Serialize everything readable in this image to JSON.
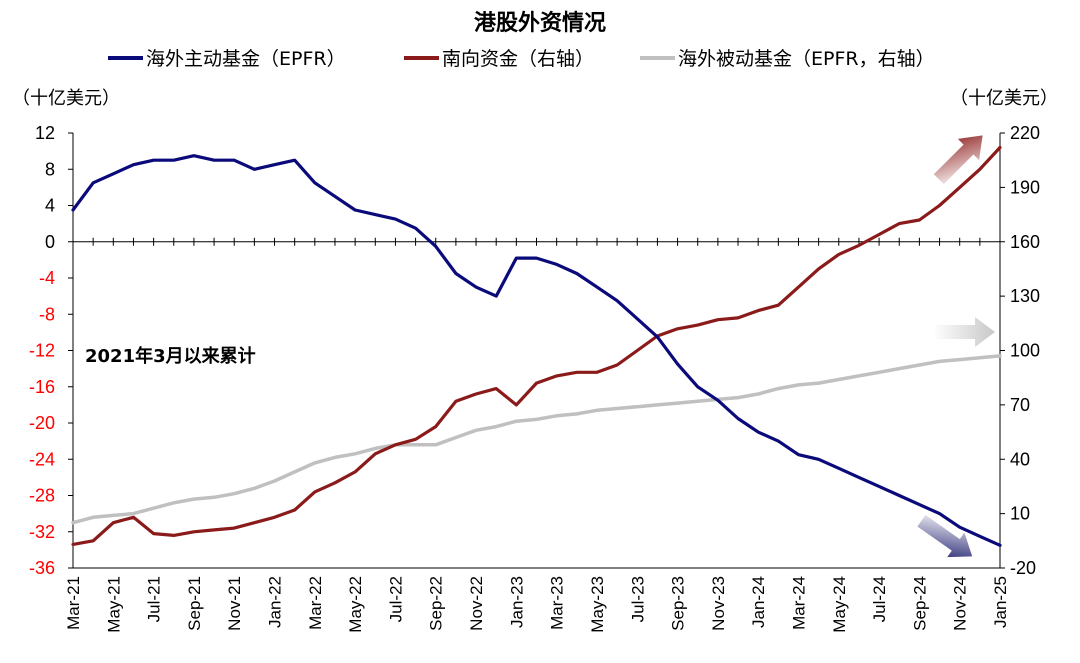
{
  "chart_data": {
    "type": "line",
    "title": "港股外资情况",
    "left_axis_unit": "（十亿美元）",
    "right_axis_unit": "（十亿美元）",
    "annotation": "2021年3月以来累计",
    "x": [
      "Mar-21",
      "Apr-21",
      "May-21",
      "Jun-21",
      "Jul-21",
      "Aug-21",
      "Sep-21",
      "Oct-21",
      "Nov-21",
      "Dec-21",
      "Jan-22",
      "Feb-22",
      "Mar-22",
      "Apr-22",
      "May-22",
      "Jun-22",
      "Jul-22",
      "Aug-22",
      "Sep-22",
      "Oct-22",
      "Nov-22",
      "Dec-22",
      "Jan-23",
      "Feb-23",
      "Mar-23",
      "Apr-23",
      "May-23",
      "Jun-23",
      "Jul-23",
      "Aug-23",
      "Sep-23",
      "Oct-23",
      "Nov-23",
      "Dec-23",
      "Jan-24",
      "Feb-24",
      "Mar-24",
      "Apr-24",
      "May-24",
      "Jun-24",
      "Jul-24",
      "Aug-24",
      "Sep-24",
      "Oct-24",
      "Nov-24",
      "Dec-24",
      "Jan-25"
    ],
    "x_tick_labels": [
      "Mar-21",
      "May-21",
      "Jul-21",
      "Sep-21",
      "Nov-21",
      "Jan-22",
      "Mar-22",
      "May-22",
      "Jul-22",
      "Sep-22",
      "Nov-22",
      "Jan-23",
      "Mar-23",
      "May-23",
      "Jul-23",
      "Sep-23",
      "Nov-23",
      "Jan-24",
      "Mar-24",
      "May-24",
      "Jul-24",
      "Sep-24",
      "Nov-24",
      "Jan-25"
    ],
    "left_axis": {
      "ylim": [
        -36,
        12
      ],
      "ticks": [
        12,
        8,
        4,
        0,
        -4,
        -8,
        -12,
        -16,
        -20,
        -24,
        -28,
        -32,
        -36
      ],
      "positive_color": "#000000",
      "negative_color": "#ff0000"
    },
    "right_axis": {
      "ylim": [
        -20,
        220
      ],
      "ticks": [
        220,
        190,
        160,
        130,
        100,
        70,
        40,
        10,
        -20
      ]
    },
    "series": [
      {
        "name": "海外主动基金（EPFR）",
        "axis": "left",
        "color": "#0a0a7a",
        "values": [
          3.5,
          6.5,
          7.5,
          8.5,
          9,
          9,
          9.5,
          9,
          9,
          8,
          8.5,
          9,
          6.5,
          5,
          3.5,
          3,
          2.5,
          1.5,
          -0.5,
          -3.5,
          -5,
          -6,
          -1.8,
          -1.8,
          -2.5,
          -3.5,
          -5,
          -6.5,
          -8.5,
          -10.5,
          -13.5,
          -16,
          -17.5,
          -19.5,
          -21,
          -22,
          -23.5,
          -24,
          -25,
          -26,
          -27,
          -28,
          -29,
          -30,
          -31.5,
          -32.5,
          -33.5
        ]
      },
      {
        "name": "南向资金（右轴）",
        "axis": "right",
        "color": "#8b1a1a",
        "values": [
          -7,
          -5,
          5,
          8,
          -1,
          -2,
          0,
          1,
          2,
          5,
          8,
          12,
          22,
          27,
          33,
          43,
          48,
          51,
          58,
          72,
          76,
          79,
          70,
          82,
          86,
          88,
          88,
          92,
          100,
          108,
          112,
          114,
          117,
          118,
          122,
          125,
          135,
          145,
          153,
          158,
          164,
          170,
          172,
          180,
          190,
          200,
          212
        ]
      },
      {
        "name": "海外被动基金（EPFR，右轴）",
        "axis": "right",
        "color": "#c0c0c0",
        "values": [
          5,
          8,
          9,
          10,
          13,
          16,
          18,
          19,
          21,
          24,
          28,
          33,
          38,
          41,
          43,
          46,
          48,
          48,
          48,
          52,
          56,
          58,
          61,
          62,
          64,
          65,
          67,
          68,
          69,
          70,
          71,
          72,
          73,
          74,
          76,
          79,
          81,
          82,
          84,
          86,
          88,
          90,
          92,
          94,
          95,
          96,
          97
        ]
      }
    ],
    "arrows": [
      {
        "color": "#8b1a1a",
        "direction": "up-right"
      },
      {
        "color": "#d0d0d0",
        "direction": "right"
      },
      {
        "color": "#1a1a6a",
        "direction": "down-right"
      }
    ],
    "grid": false,
    "legend_position": "top"
  }
}
